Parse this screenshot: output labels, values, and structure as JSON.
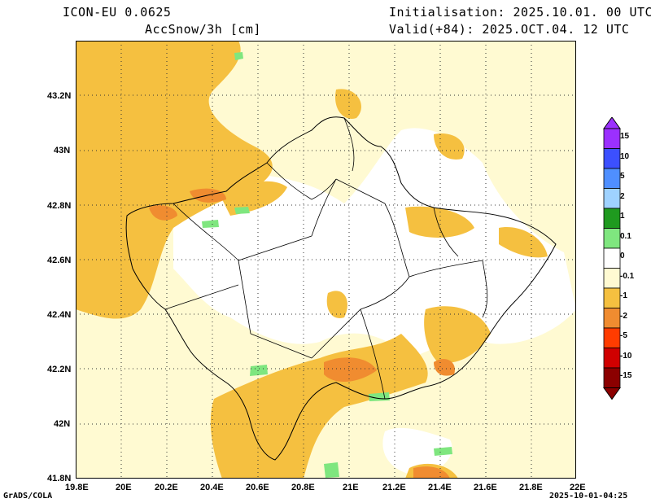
{
  "header": {
    "model": "ICON-EU 0.0625",
    "variable": "AccSnow/3h [cm]",
    "init": "Initialisation: 2025.10.01. 00 UTC",
    "valid": "Valid(+84): 2025.OCT.04. 12 UTC"
  },
  "map": {
    "lon_labels": [
      "19.8E",
      "20E",
      "20.2E",
      "20.4E",
      "20.6E",
      "20.8E",
      "21E",
      "21.2E",
      "21.4E",
      "21.6E",
      "21.8E",
      "22E"
    ],
    "lat_labels": [
      "43.2N",
      "43N",
      "42.8N",
      "42.6N",
      "42.4N",
      "42.2N",
      "42N",
      "41.8N"
    ],
    "gridlines": true
  },
  "colorbar": {
    "labels": [
      "15",
      "10",
      "5",
      "2",
      "1",
      "0.1",
      "0",
      "-0.1",
      "-1",
      "-2",
      "-5",
      "-10",
      "-15"
    ],
    "colors": [
      "#9b30ff",
      "#3c50ff",
      "#4f8fff",
      "#9fd2ff",
      "#1f9a1f",
      "#7fe67f",
      "#ffffff",
      "#fffad2",
      "#f5c040",
      "#f08c30",
      "#ff3c00",
      "#d00000",
      "#8b0000"
    ]
  },
  "footer": {
    "left": "GrADS/COLA",
    "right": "2025-10-01-04:25"
  }
}
